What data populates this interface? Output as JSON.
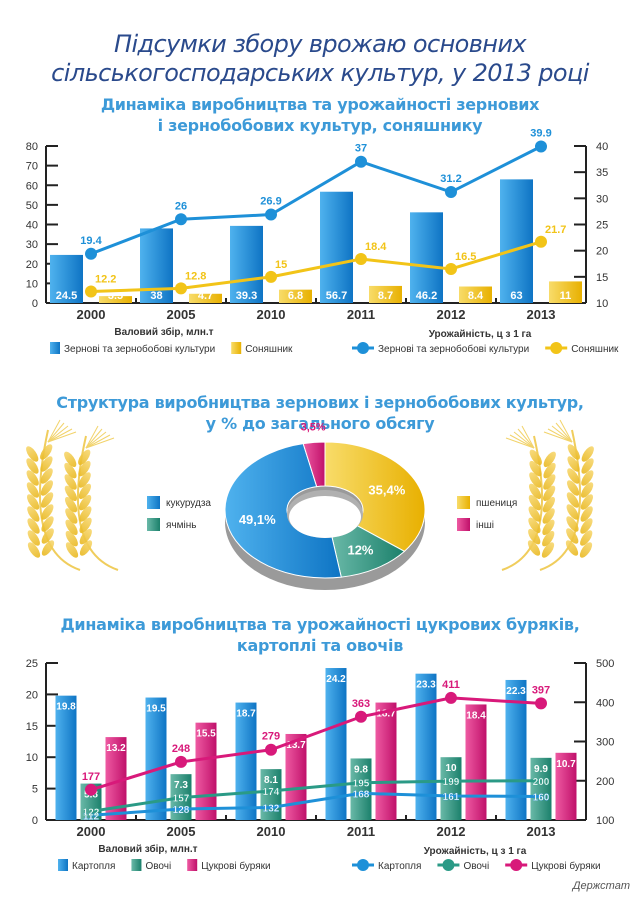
{
  "main_title_line1": "Підсумки збору врожаю основних",
  "main_title_line2": "сільськогосподарських культур, у 2013 році",
  "source": "Держстат",
  "colors": {
    "blue": "#1e90d8",
    "yellow": "#f2c418",
    "teal": "#2a9a86",
    "magenta": "#d8197a",
    "title_dark": "#2a4a8c",
    "title_light": "#3d9ad8"
  },
  "chart_data": [
    {
      "type": "bar",
      "title": "Динаміка виробництва та урожайності зернових і зернобобових культур, соняшнику",
      "title_line1": "Динаміка виробництва та урожайності зернових",
      "title_line2": "і зернобобових культур, соняшнику",
      "categories": [
        "2000",
        "2005",
        "2010",
        "2011",
        "2012",
        "2013"
      ],
      "left_axis": {
        "label": "Валовий збір, млн.т",
        "ylim": [
          0,
          80
        ],
        "ticks": [
          0,
          10,
          20,
          30,
          40,
          50,
          60,
          70,
          80
        ]
      },
      "right_axis": {
        "label": "Урожайність, ц з 1 га",
        "ylim": [
          10,
          40
        ],
        "ticks": [
          10,
          15,
          20,
          25,
          30,
          35,
          40
        ]
      },
      "bar_series": [
        {
          "name": "Зернові та зернобобові культури",
          "color": "#1e90d8",
          "values": [
            24.5,
            38,
            39.3,
            56.7,
            46.2,
            63
          ]
        },
        {
          "name": "Соняшник",
          "color": "#f2c418",
          "values": [
            3.5,
            4.7,
            6.8,
            8.7,
            8.4,
            11
          ]
        }
      ],
      "line_series": [
        {
          "name": "Зернові та зернобобові культури",
          "color": "#1e90d8",
          "values": [
            19.4,
            26,
            26.9,
            37,
            31.2,
            39.9
          ]
        },
        {
          "name": "Соняшник",
          "color": "#f2c418",
          "values": [
            12.2,
            12.8,
            15,
            18.4,
            16.5,
            21.7
          ]
        }
      ],
      "legend_bars": [
        "Зернові та зернобобові культури",
        "Соняшник"
      ],
      "legend_lines": [
        "Зернові та зернобобові культури",
        "Соняшник"
      ]
    },
    {
      "type": "pie",
      "title": "Структура виробництва зернових і зернобобових культур, у % до загального обсягу",
      "title_line1": "Структура виробництва зернових і зернобобових культур,",
      "title_line2": "у % до загального обсягу",
      "slices": [
        {
          "name": "пшениця",
          "value": 35.4,
          "label": "35,4%",
          "color": "#f2c418"
        },
        {
          "name": "ячмінь",
          "value": 12,
          "label": "12%",
          "color": "#2a9a86"
        },
        {
          "name": "кукурудза",
          "value": 49.1,
          "label": "49,1%",
          "color": "#1e90d8"
        },
        {
          "name": "інші",
          "value": 3.5,
          "label": "3,5%",
          "color": "#d8197a"
        }
      ],
      "legend_left": [
        "кукурудза",
        "ячмінь"
      ],
      "legend_right": [
        "пшениця",
        "інші"
      ]
    },
    {
      "type": "bar",
      "title": "Динаміка виробництва та урожайності цукрових буряків, картоплі та овочів",
      "title_line1": "Динаміка виробництва та урожайності цукрових буряків,",
      "title_line2": "картоплі та овочів",
      "categories": [
        "2000",
        "2005",
        "2010",
        "2011",
        "2012",
        "2013"
      ],
      "left_axis": {
        "label": "Валовий збір, млн.т",
        "ylim": [
          0,
          25
        ],
        "ticks": [
          0,
          5,
          10,
          15,
          20,
          25
        ]
      },
      "right_axis": {
        "label": "Урожайність, ц з 1 га",
        "ylim": [
          100,
          500
        ],
        "ticks": [
          100,
          200,
          300,
          400,
          500
        ]
      },
      "bar_series": [
        {
          "name": "Картопля",
          "color": "#1e90d8",
          "values": [
            19.8,
            19.5,
            18.7,
            24.2,
            23.3,
            22.3
          ]
        },
        {
          "name": "Овочі",
          "color": "#2a9a86",
          "values": [
            5.8,
            7.3,
            8.1,
            9.8,
            10,
            9.9
          ]
        },
        {
          "name": "Цукрові буряки",
          "color": "#d8197a",
          "values": [
            13.2,
            15.5,
            13.7,
            18.7,
            18.4,
            10.7
          ]
        }
      ],
      "line_series": [
        {
          "name": "Картопля",
          "color": "#1e90d8",
          "values": [
            112,
            128,
            132,
            168,
            161,
            160
          ]
        },
        {
          "name": "Овочі",
          "color": "#2a9a86",
          "values": [
            122,
            157,
            174,
            195,
            199,
            200
          ]
        },
        {
          "name": "Цукрові буряки",
          "color": "#d8197a",
          "values": [
            177,
            248,
            279,
            363,
            411,
            397
          ]
        }
      ],
      "legend_bars": [
        "Картопля",
        "Овочі",
        "Цукрові буряки"
      ],
      "legend_lines": [
        "Картопля",
        "Овочі",
        "Цукрові буряки"
      ]
    }
  ]
}
